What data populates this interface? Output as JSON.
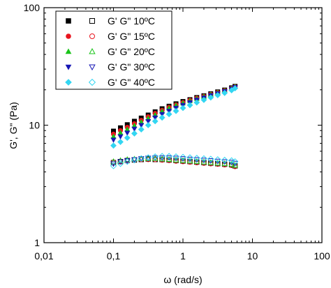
{
  "chart_data": {
    "type": "scatter",
    "title": "",
    "xlabel": "ω (rad/s)",
    "ylabel": "G', G\" (Pa)",
    "x_scale": "log",
    "y_scale": "log",
    "xlim": [
      0.01,
      100
    ],
    "ylim": [
      1,
      100
    ],
    "x_tick_labels": [
      "0,01",
      "0,1",
      "1",
      "10",
      "100"
    ],
    "y_tick_labels": [
      "1",
      "10",
      "100"
    ],
    "grid": false,
    "legend_position": "top-left",
    "x": [
      0.1,
      0.126,
      0.158,
      0.2,
      0.251,
      0.316,
      0.398,
      0.501,
      0.631,
      0.794,
      1.0,
      1.26,
      1.58,
      2.0,
      2.51,
      3.16,
      3.98,
      5.01,
      5.62
    ],
    "series": [
      {
        "name": "10ºC",
        "label": "G' G\" 10ºC",
        "color": "#000000",
        "marker": "square",
        "G_prime": [
          8.9,
          9.5,
          10.1,
          10.8,
          11.5,
          12.2,
          13.0,
          13.8,
          14.5,
          15.2,
          15.9,
          16.5,
          17.2,
          17.8,
          18.5,
          19.2,
          19.9,
          20.8,
          21.4
        ],
        "G_double_prime": [
          4.8,
          4.9,
          5.0,
          5.05,
          5.1,
          5.15,
          5.1,
          5.1,
          5.05,
          5.0,
          4.95,
          4.9,
          4.85,
          4.8,
          4.75,
          4.7,
          4.65,
          4.6,
          4.5
        ]
      },
      {
        "name": "15ºC",
        "label": "G' G\" 15ºC",
        "color": "#e8141e",
        "marker": "circle",
        "G_prime": [
          8.4,
          9.0,
          9.6,
          10.3,
          11.0,
          11.8,
          12.6,
          13.4,
          14.2,
          14.9,
          15.6,
          16.3,
          17.0,
          17.6,
          18.3,
          19.0,
          19.7,
          20.6,
          21.2
        ],
        "G_double_prime": [
          4.85,
          4.9,
          5.0,
          5.05,
          5.1,
          5.1,
          5.1,
          5.05,
          5.0,
          4.95,
          4.9,
          4.85,
          4.8,
          4.75,
          4.7,
          4.65,
          4.6,
          4.55,
          4.45
        ]
      },
      {
        "name": "20ºC",
        "label": "G' G\" 20ºC",
        "color": "#19c419",
        "marker": "triangle-up",
        "G_prime": [
          8.0,
          8.6,
          9.2,
          9.9,
          10.6,
          11.4,
          12.2,
          13.1,
          13.9,
          14.7,
          15.4,
          16.1,
          16.8,
          17.5,
          18.2,
          18.9,
          19.6,
          20.5,
          21.2
        ],
        "G_double_prime": [
          4.9,
          5.0,
          5.1,
          5.15,
          5.2,
          5.2,
          5.2,
          5.15,
          5.1,
          5.05,
          5.0,
          4.95,
          4.9,
          4.85,
          4.8,
          4.75,
          4.7,
          4.65,
          4.55
        ]
      },
      {
        "name": "30ºC",
        "label": "G' G\" 30ºC",
        "color": "#1616b4",
        "marker": "triangle-down",
        "G_prime": [
          7.5,
          8.0,
          8.6,
          9.3,
          10.0,
          10.8,
          11.6,
          12.4,
          13.2,
          14.0,
          14.8,
          15.6,
          16.4,
          17.1,
          17.9,
          18.6,
          19.4,
          20.3,
          21.0
        ],
        "G_double_prime": [
          4.7,
          4.9,
          5.0,
          5.1,
          5.2,
          5.25,
          5.3,
          5.3,
          5.3,
          5.25,
          5.2,
          5.15,
          5.1,
          5.05,
          5.0,
          4.95,
          4.9,
          4.85,
          4.75
        ]
      },
      {
        "name": "40ºC",
        "label": "G' G\" 40ºC",
        "color": "#33d6f2",
        "marker": "diamond",
        "G_prime": [
          6.7,
          7.2,
          7.8,
          8.5,
          9.2,
          10.0,
          10.8,
          11.6,
          12.4,
          13.2,
          14.0,
          14.8,
          15.6,
          16.4,
          17.2,
          18.0,
          18.8,
          19.8,
          20.6
        ],
        "G_double_prime": [
          4.5,
          4.7,
          4.9,
          5.05,
          5.2,
          5.3,
          5.4,
          5.45,
          5.45,
          5.4,
          5.35,
          5.3,
          5.25,
          5.2,
          5.15,
          5.1,
          5.05,
          5.0,
          4.9
        ]
      }
    ]
  }
}
